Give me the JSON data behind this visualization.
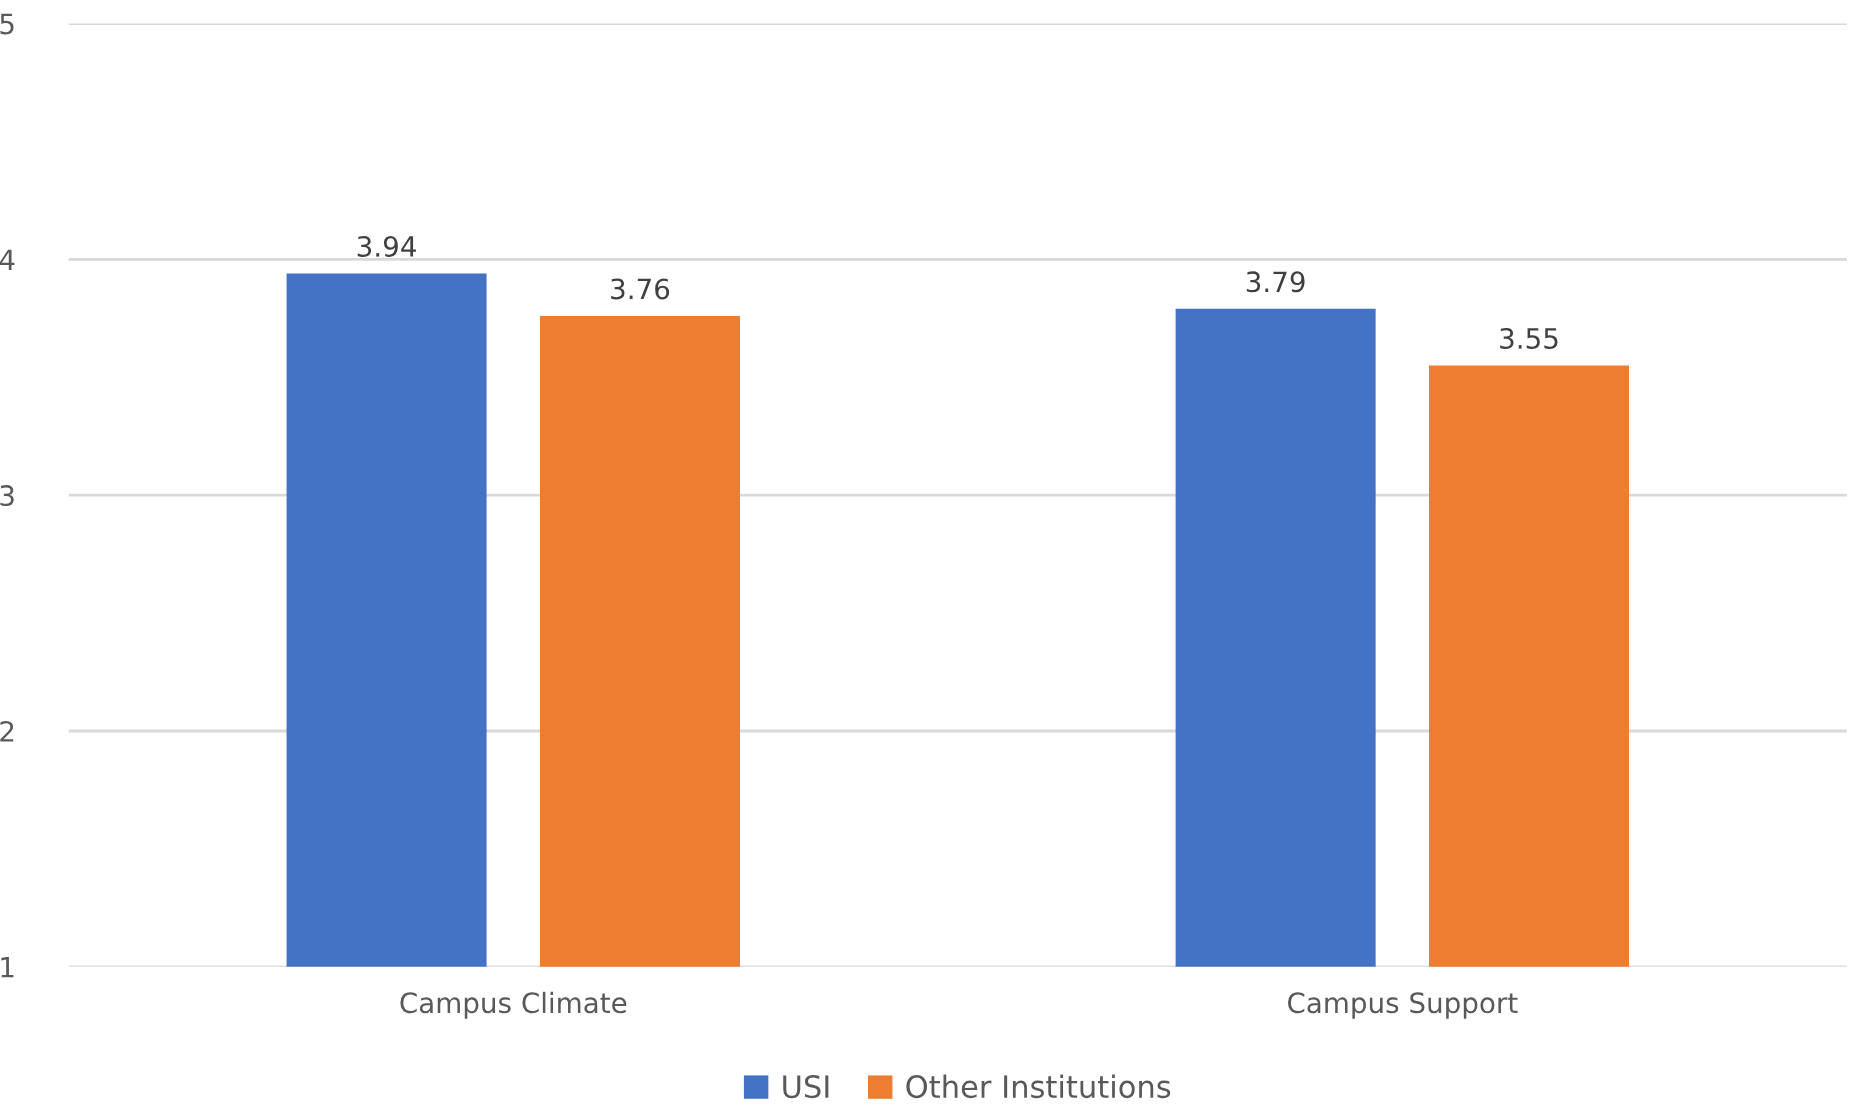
{
  "chart_data": {
    "type": "bar",
    "categories": [
      "Campus Climate",
      "Campus Support"
    ],
    "series": [
      {
        "name": "USI",
        "color": "#4472c4",
        "values": [
          3.94,
          3.79
        ]
      },
      {
        "name": "Other Institutions",
        "color": "#ed7d31",
        "values": [
          3.76,
          3.55
        ]
      }
    ],
    "ylim": [
      1,
      5
    ],
    "yticks": [
      1,
      2,
      3,
      4,
      5
    ],
    "grid": "y",
    "legend": "bottom",
    "data_labels": true
  }
}
